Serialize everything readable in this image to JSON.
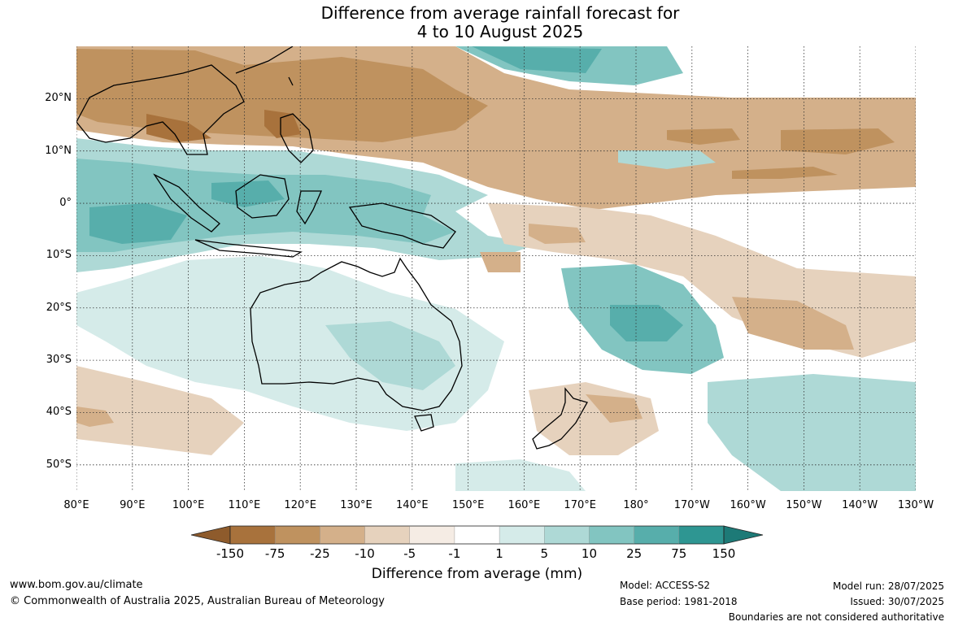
{
  "header": {
    "title_line1": "Difference from average rainfall forecast for",
    "title_line2": "4 to 10 August 2025"
  },
  "map": {
    "projection": "equirectangular",
    "lon_range_east": [
      80,
      230
    ],
    "lat_range": [
      -55,
      30
    ],
    "lon_ticks": [
      "80°E",
      "90°E",
      "100°E",
      "110°E",
      "120°E",
      "130°E",
      "140°E",
      "150°E",
      "160°E",
      "170°E",
      "180°",
      "170°W",
      "160°W",
      "150°W",
      "140°W",
      "130°W"
    ],
    "lat_ticks": [
      "20°N",
      "10°N",
      "0°",
      "10°S",
      "20°S",
      "30°S",
      "40°S",
      "50°S"
    ],
    "grid": true
  },
  "legend": {
    "title": "Difference from average (mm)",
    "bounds": [
      "-150",
      "-75",
      "-25",
      "-10",
      "-5",
      "-1",
      "1",
      "5",
      "10",
      "25",
      "75",
      "150"
    ],
    "colors": {
      "under": "#8e5b2c",
      "bins": [
        "#a8723c",
        "#bf925f",
        "#d4b08a",
        "#e6d2bd",
        "#f5ece4",
        "#ffffff",
        "#d5ebe9",
        "#aed9d6",
        "#82c5c1",
        "#57aeab",
        "#2e9692"
      ],
      "over": "#1d7a77"
    }
  },
  "footer": {
    "website": "www.bom.gov.au/climate",
    "copyright": "© Commonwealth of Australia 2025, Australian Bureau of Meteorology",
    "model": "Model: ACCESS-S2",
    "base_period": "Base period: 1981-2018",
    "model_run": "Model run: 28/07/2025",
    "issued": "Issued: 30/07/2025",
    "disclaimer": "Boundaries are not considered authoritative"
  }
}
